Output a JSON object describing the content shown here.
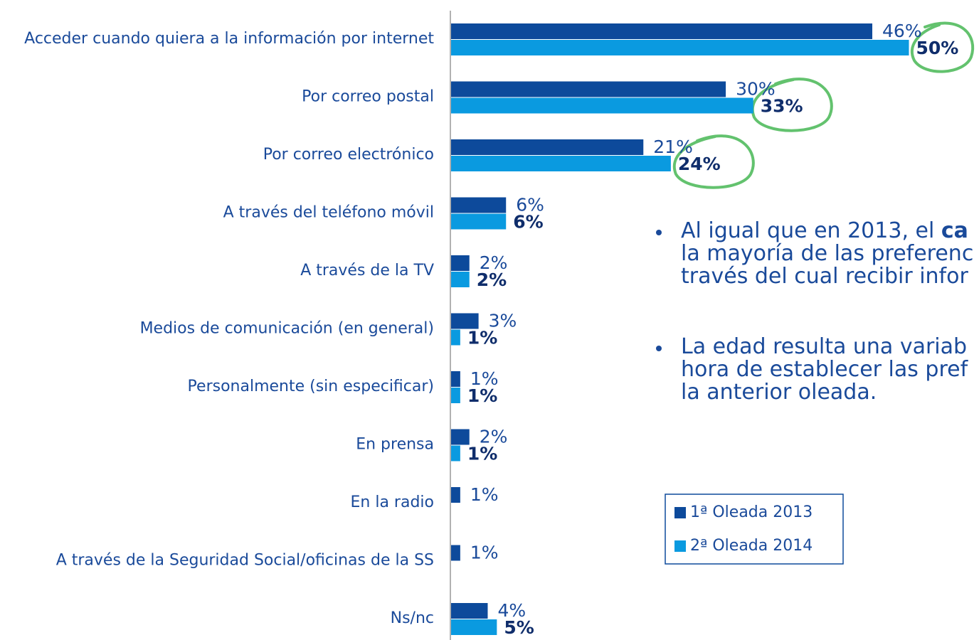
{
  "chart_data": {
    "type": "bar",
    "orientation": "horizontal",
    "categories": [
      "Acceder cuando quiera a la información por internet",
      "Por correo postal",
      "Por correo electrónico",
      "A través del teléfono móvil",
      "A través de la TV",
      "Medios de comunicación (en general)",
      "Personalmente (sin especificar)",
      "En prensa",
      "En la radio",
      "A través de la Seguridad Social/oficinas de la SS",
      "Ns/nc"
    ],
    "series": [
      {
        "name": "1ª Oleada 2013",
        "color": "#0d4a9b",
        "values": [
          46,
          30,
          21,
          6,
          2,
          3,
          1,
          2,
          1,
          1,
          4
        ],
        "value_labels": [
          "46%",
          "30%",
          "21%",
          "6%",
          "2%",
          "3%",
          "1%",
          "2%",
          "1%",
          "1%",
          "4%"
        ]
      },
      {
        "name": "2ª Oleada 2014",
        "color": "#0a9ae0",
        "values": [
          50,
          33,
          24,
          6,
          2,
          1,
          1,
          1,
          null,
          null,
          5
        ],
        "value_labels": [
          "50%",
          "33%",
          "24%",
          "6%",
          "2%",
          "1%",
          "1%",
          "1%",
          null,
          null,
          "5%"
        ]
      }
    ],
    "bullets": [
      {
        "lines": [
          "Al igual que en 2013, el ",
          "la mayoría de las preferenc",
          "través del cual recibir infor"
        ],
        "bold": "ca"
      },
      {
        "lines": [
          "La edad resulta una variab",
          "hora de establecer las pref",
          "la anterior oleada."
        ]
      }
    ]
  }
}
